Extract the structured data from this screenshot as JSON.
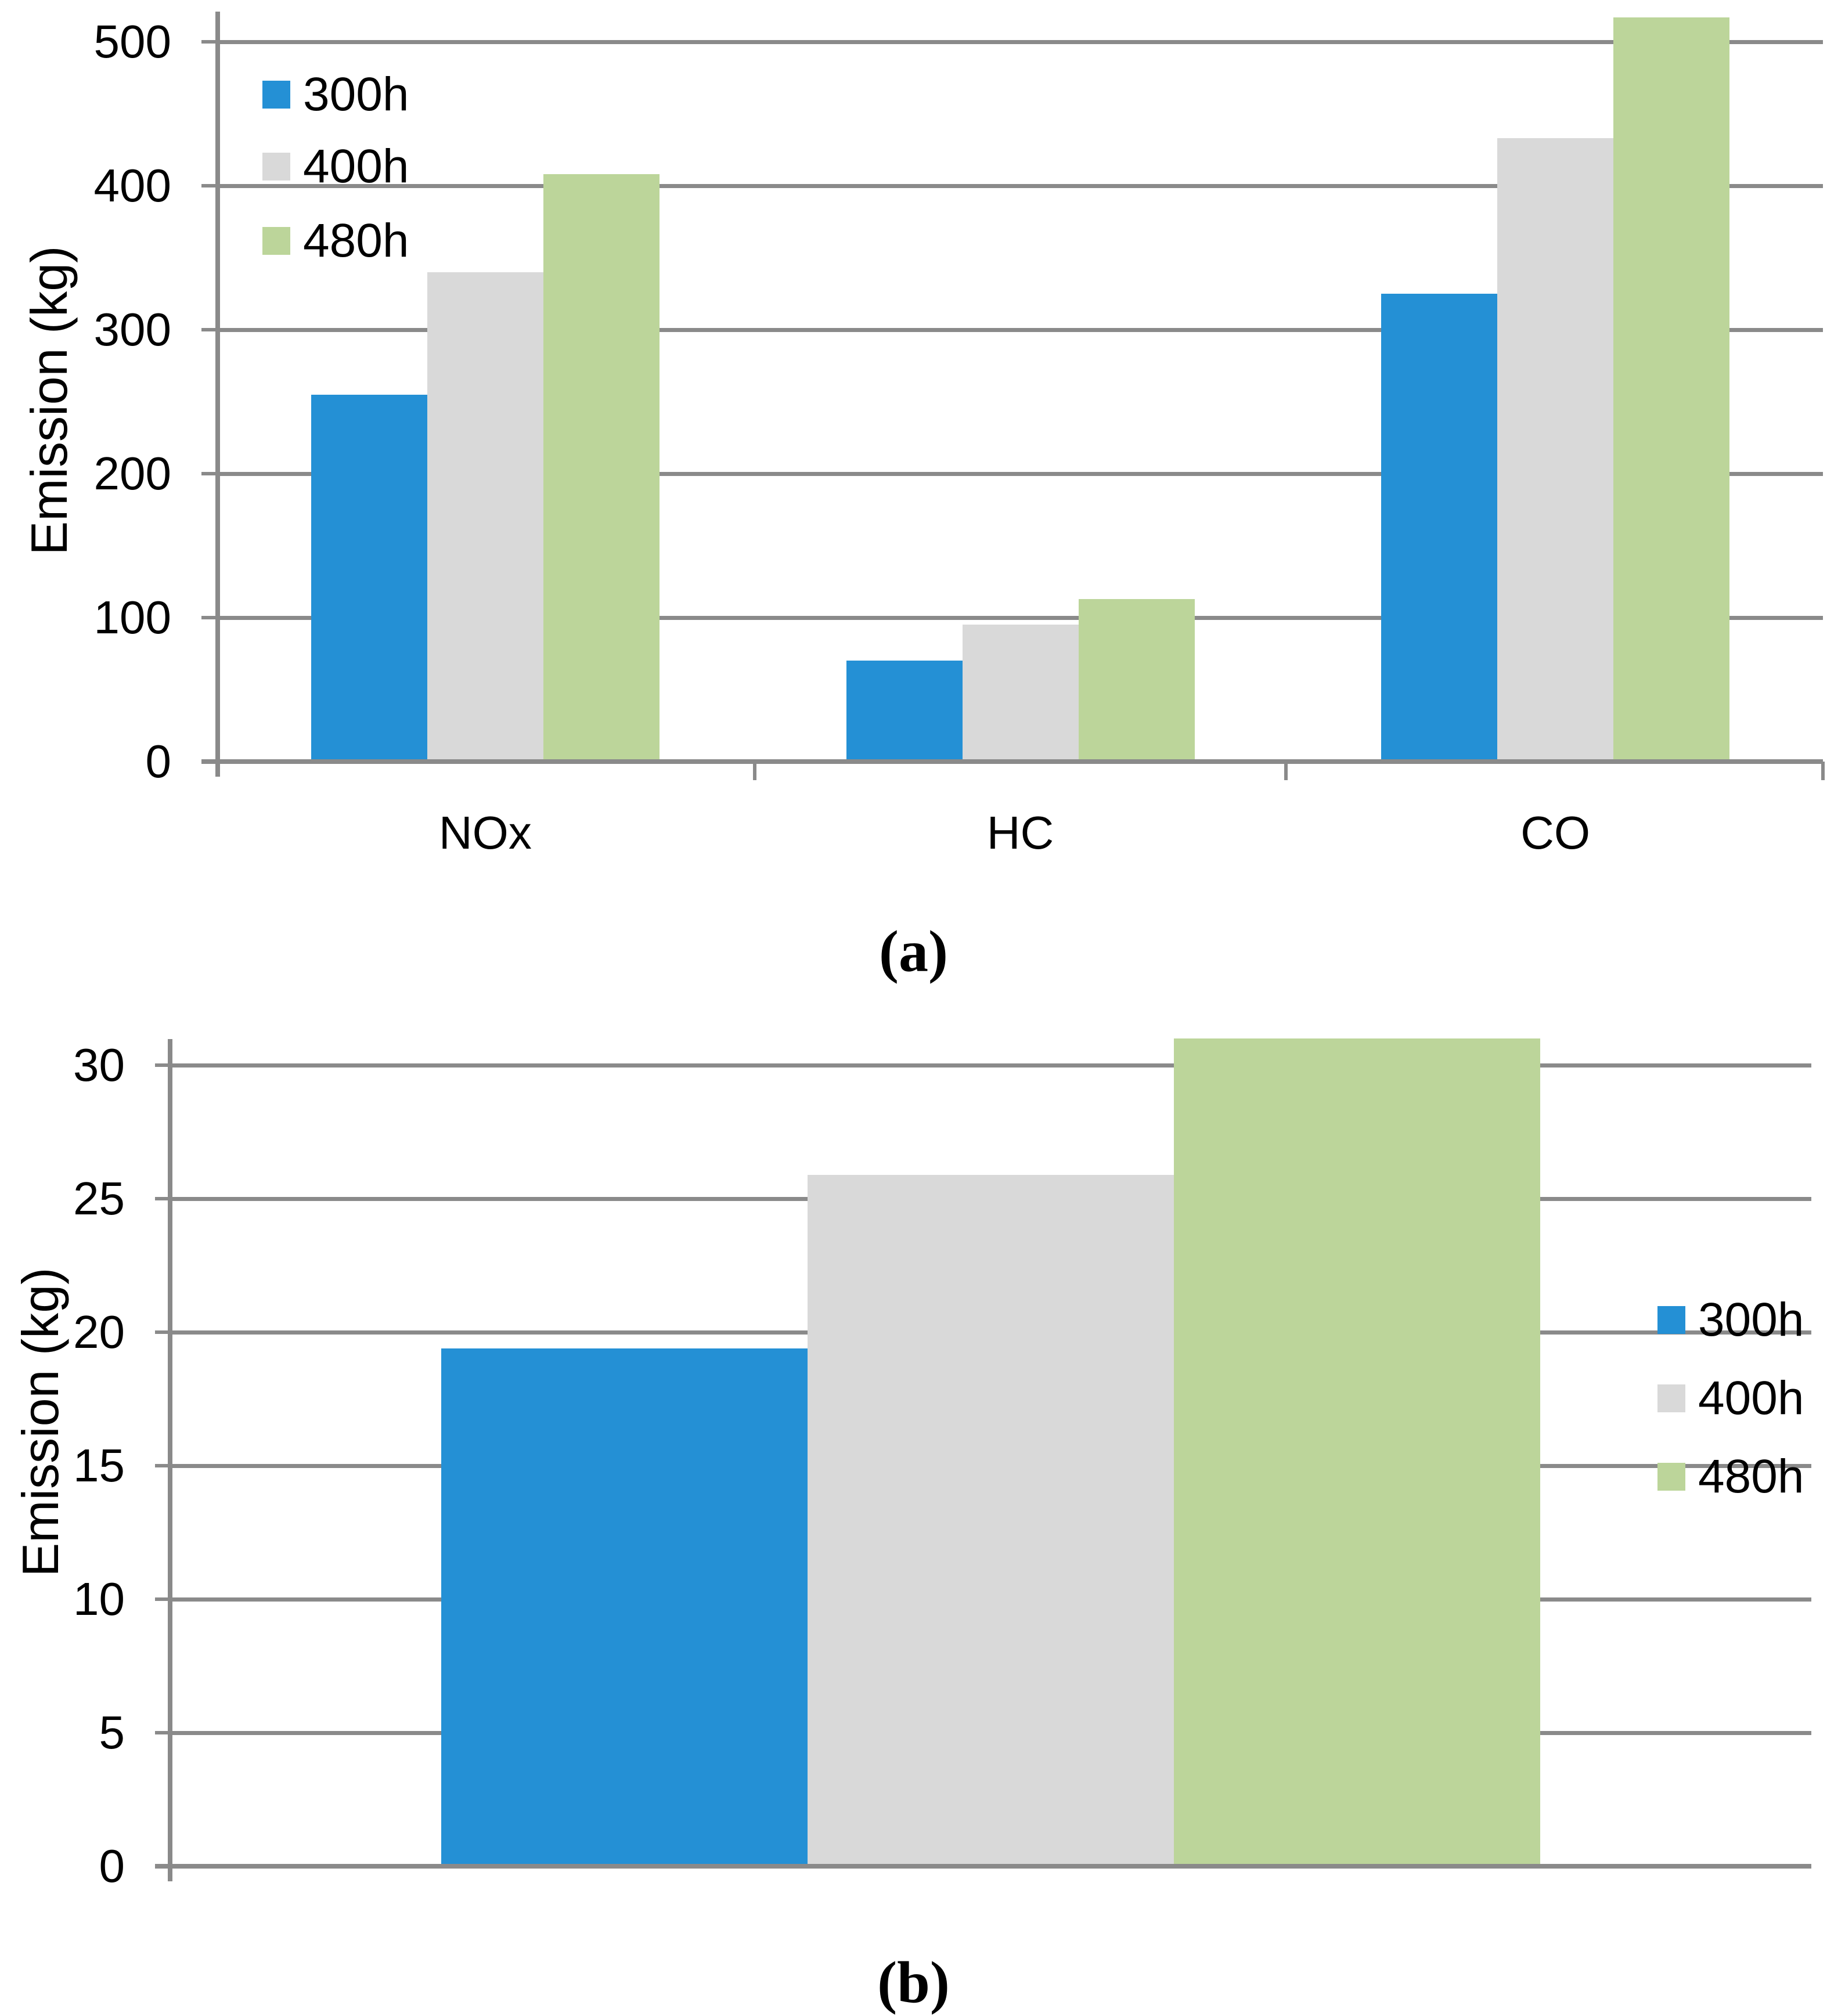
{
  "figure": {
    "background": "#ffffff",
    "description": "Two stacked bar charts of pollutant emissions for three engine operating durations"
  },
  "colors": {
    "series_300h": "#2490D5",
    "series_400h": "#D9D9D9",
    "series_480h": "#BCD59A",
    "gridline": "#8A8A8A",
    "axis": "#8A8A8A",
    "text": "#000000"
  },
  "chart_data": [
    {
      "id": "a",
      "type": "bar",
      "caption": "(a)",
      "ylabel": "Emission (kg)",
      "categories": [
        "NOx",
        "HC",
        "CO"
      ],
      "series": [
        {
          "name": "300h",
          "color": "#2490D5",
          "values": [
            255,
            70,
            325
          ]
        },
        {
          "name": "400h",
          "color": "#D9D9D9",
          "values": [
            340,
            95,
            433
          ]
        },
        {
          "name": "480h",
          "color": "#BCD59A",
          "values": [
            408,
            113,
            517
          ]
        }
      ],
      "yticks": [
        0,
        100,
        200,
        300,
        400,
        500
      ],
      "ylim": [
        0,
        521
      ],
      "grid": true,
      "legend_position": "inside-top-left"
    },
    {
      "id": "b",
      "type": "bar",
      "caption": "(b)",
      "ylabel": "Emission (kg)",
      "categories": [
        ""
      ],
      "series": [
        {
          "name": "300h",
          "color": "#2490D5",
          "values": [
            19.4
          ]
        },
        {
          "name": "400h",
          "color": "#D9D9D9",
          "values": [
            25.9
          ]
        },
        {
          "name": "480h",
          "color": "#BCD59A",
          "values": [
            31
          ]
        }
      ],
      "yticks": [
        0,
        5,
        10,
        15,
        20,
        25,
        30
      ],
      "ylim": [
        0,
        31
      ],
      "grid": true,
      "legend_position": "inside-right"
    }
  ]
}
